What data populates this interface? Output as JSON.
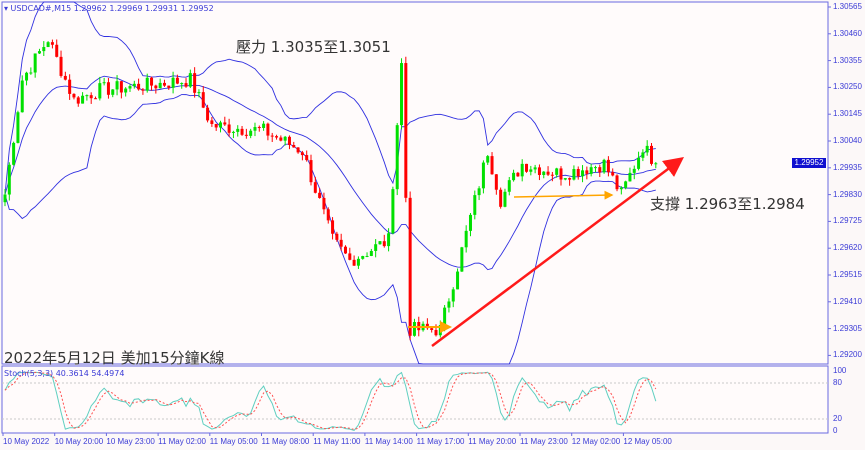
{
  "header": {
    "symbol_line": "▾ USDCAD#,M15  1.29962 1.29969 1.29931 1.29952"
  },
  "annotations": {
    "resistance": "壓力 1.3035至1.3051",
    "support": "支撐 1.2963至1.2984",
    "caption": "2022年5月12日 美加15分鐘K線"
  },
  "price_axis": {
    "ticks": [
      "1.30565",
      "1.30460",
      "1.30355",
      "1.30250",
      "1.30145",
      "1.30040",
      "1.29935",
      "1.29830",
      "1.29725",
      "1.29620",
      "1.29515",
      "1.29410",
      "1.29305",
      "1.29200"
    ],
    "current": "1.29952"
  },
  "stoch": {
    "label": "Stoch(5,3,3) 40.3614 54.4974",
    "ticks": [
      "100",
      "80",
      "20",
      "0"
    ]
  },
  "time_axis": {
    "labels": [
      "10 May 2022",
      "10 May 20:00",
      "10 May 23:00",
      "11 May 02:00",
      "11 May 05:00",
      "11 May 08:00",
      "11 May 11:00",
      "11 May 14:00",
      "11 May 17:00",
      "11 May 20:00",
      "11 May 23:00",
      "12 May 02:00",
      "12 May 05:00"
    ]
  },
  "colors": {
    "bull": "#00e000",
    "bear": "#ff0000",
    "bands": "#3030e0",
    "trendline": "#ff1a1a",
    "arrows": "#ffa500",
    "stoch_main": "#5fcfc0",
    "stoch_signal": "#ff5050"
  },
  "chart_data": {
    "type": "candlestick",
    "timeframe": "M15",
    "indicators": [
      "Bollinger Bands",
      "Stochastic(5,3,3)"
    ],
    "ylim": [
      1.292,
      1.30565
    ],
    "approx_close_path": [
      [
        "10 May 17:00",
        1.2983
      ],
      [
        "10 May 18:00",
        1.3028
      ],
      [
        "10 May 19:30",
        1.3044
      ],
      [
        "10 May 21:00",
        1.302
      ],
      [
        "10 May 22:30",
        1.3024
      ],
      [
        "11 May 01:30",
        1.3026
      ],
      [
        "11 May 03:45",
        1.3028
      ],
      [
        "11 May 05:00",
        1.301
      ],
      [
        "11 May 08:00",
        1.3008
      ],
      [
        "11 May 10:15",
        1.3
      ],
      [
        "11 May 12:00",
        1.2965
      ],
      [
        "11 May 13:00",
        1.2957
      ],
      [
        "11 May 15:15",
        1.2965
      ],
      [
        "11 May 16:00",
        1.3034
      ],
      [
        "11 May 16:30",
        1.293
      ],
      [
        "11 May 18:15",
        1.293
      ],
      [
        "11 May 19:30",
        1.2961
      ],
      [
        "11 May 21:00",
        1.3
      ],
      [
        "11 May 21:45",
        1.2981
      ],
      [
        "11 May 23:00",
        1.2995
      ],
      [
        "12 May 01:15",
        1.2991
      ],
      [
        "12 May 03:45",
        1.2995
      ],
      [
        "12 May 04:45",
        1.2983
      ],
      [
        "12 May 06:00",
        1.3002
      ],
      [
        "12 May 06:45",
        1.29952
      ]
    ]
  }
}
